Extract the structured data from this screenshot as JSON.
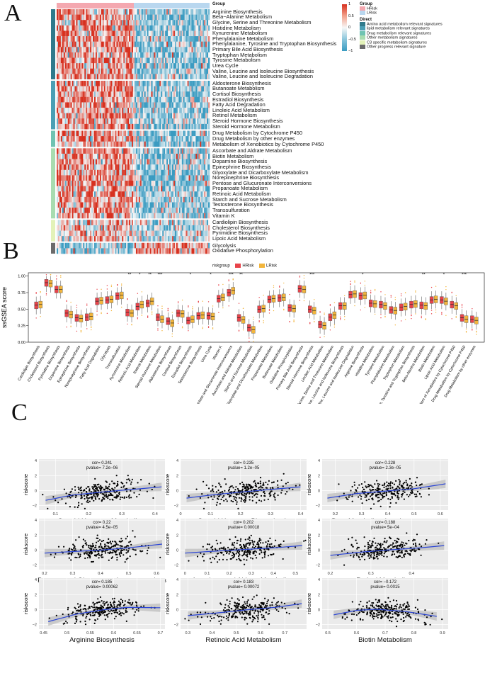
{
  "panels": {
    "a": "A",
    "b": "B",
    "c": "C"
  },
  "heatmap": {
    "group_header": "Group",
    "row_groups": [
      {
        "category": "Amino acid metabolism relevant signatures",
        "color": "#2f7a8c",
        "rows": [
          "Arginine Biosynthesis",
          "Beta−Alanine Metabolism",
          "Glycine, Serine and Threonine Metabolism",
          "Histidine Metabolism",
          "Kynurenine Metabolism",
          "Phenylalanine Metabolism",
          "Phenylalanine, Tyrosine and Tryptophan Biosynthesis",
          "Primary Bile Acid Biosynthesis",
          "Tryptophan Metabolism",
          "Tyrosine Metabolism",
          "Urea Cycle",
          "Valine, Leucine and Isoleucine Biosynthesis",
          "Valine, Leucine and Isoleucine Degradation"
        ]
      },
      {
        "category": "lipid metabolism relevant signatures",
        "color": "#4a9fb5",
        "rows": [
          "Aldosterone Biosynthesis",
          "Butanoate Metabolism",
          "Cortisol Biosynthesis",
          "Estradiol Biosynthesis",
          "Fatty Acid Degradation",
          "Linoleic Acid Metabolism",
          "Retinol Metabolism",
          "Steroid Hormone Biosynthesis",
          "Steroid Hormone Metabolism"
        ]
      },
      {
        "category": "Drug metabolism relevant signatures",
        "color": "#6fc3b2",
        "rows": [
          "Drug Metabolism by Cytochrome P450",
          "Drug Metabolism by other enzymes",
          "Metabolism of Xenobiotics by Cytochrome P450"
        ]
      },
      {
        "category": "Other metabolism signatures",
        "color": "#a8dcb0",
        "rows": [
          "Ascorbate and Aldrate Metabolism",
          "Biotin Metabolism",
          "Dopamine Biosynthesis",
          "Epinephrine Biosynthesis",
          "Glyoxylate and Dicarboxylate Metabolism",
          "Norepinephrine Biosynthesis",
          "Pentose and Glucuronate Interconversions",
          "Propanoate Metabolism",
          "Retinoic Acid Metabolism",
          "Starch and Sucrose Metabolism",
          "Testosterone Biosynthesis",
          "Transsulfuration",
          "Vitamin K"
        ]
      },
      {
        "category": "C3 specific metabolism signatures",
        "color": "#e3f2b8",
        "rows": [
          "Cardiolipin Biosynthesis",
          "Cholesterol Biosynthesis",
          "Pyrimidine Biosynthesis",
          "Lipoic Acid Metabolism"
        ]
      },
      {
        "category": "Other progress relevant signature",
        "color": "#6b6b6b",
        "rows": [
          "Glycolysis",
          "Oxidative Phosphorylation"
        ]
      }
    ],
    "colorbar": {
      "ticks": [
        "1",
        "0.5",
        "0",
        "−0.5",
        "−1"
      ],
      "high": "#d7301f",
      "mid": "#f7f7f7",
      "low": "#3a9bc1"
    },
    "group_legend": {
      "title": "Group",
      "items": [
        {
          "label": "HRisk",
          "color": "#f4a8b0"
        },
        {
          "label": "LRisk",
          "color": "#b9d7ef"
        }
      ]
    },
    "direct_legend": {
      "title": "Direct"
    }
  },
  "boxplot": {
    "legend_title": "riskgroup",
    "groups": [
      {
        "label": "HRisk",
        "color": "#e8434a"
      },
      {
        "label": "LRisk",
        "color": "#f2b53c"
      }
    ],
    "ylabel": "ssGSEA score",
    "yticks": [
      "0.00",
      "0.25",
      "0.50",
      "0.75",
      "1.00"
    ],
    "chart_data": {
      "type": "box",
      "ylim": [
        0,
        1.05
      ],
      "categories": [
        "Cardiolipin Biosynthesis",
        "Cholesterol Biosynthesis",
        "Pyrimidine Biosynthesis",
        "Dopamine Biosynthesis",
        "Epinephrine Biosynthesis",
        "Norepinephrine Biosynthesis",
        "Fatty Acid Degradation",
        "Glycolysis",
        "Transsulfuration",
        "Kynurenine Metabolism",
        "Retinoic Acid Metabolism",
        "Retinol Metabolism",
        "Steroid Hormone Metabolism",
        "Aldosterone Biosynthesis",
        "Cortisol Biosynthesis",
        "Estradiol Biosynthesis",
        "Testosterone Biosynthesis",
        "Urea Cycle",
        "Vitamin K",
        "Pentose and Glucuronate Interconversions",
        "Ascorbate and Aldrate Metabolism",
        "Starch and Sucrose Metabolism",
        "Glyoxylate and Dicarboxylate Metabolism",
        "Propanoate Metabolism",
        "Butanoate Metabolism",
        "Oxidative Phosphorylation",
        "Primary Bile Acid Biosynthesis",
        "Steroid Hormone Biosynthesis",
        "Linoleic Acid Metabolism",
        "Glycine, Serine and Threonine Metabolism",
        "Valine, Leucine and Isoleucine Biosynthesis",
        "Valine, Leucine and Isoleucine Degradation",
        "Arginine Biosynthesis",
        "Histidine Metabolism",
        "Tyrosine Metabolism",
        "Phenylalanine Metabolism",
        "Tryptophan Metabolism",
        "Phenylalanine, Tyrosine and Tryptophan Biosynthesis",
        "Beta-Alanine Metabolism",
        "Biotin Metabolism",
        "Lipoic Acid Metabolism",
        "Metabolism of Xenobiotics by Cytochrome P450",
        "Drug Metabolism by Cytochrome P450",
        "Drug Metabolism by other enzymes"
      ],
      "series": [
        {
          "name": "HRisk",
          "medians": [
            0.56,
            0.9,
            0.8,
            0.44,
            0.37,
            0.38,
            0.62,
            0.64,
            0.7,
            0.45,
            0.54,
            0.59,
            0.38,
            0.32,
            0.44,
            0.33,
            0.4,
            0.4,
            0.66,
            0.75,
            0.37,
            0.22,
            0.5,
            0.65,
            0.67,
            0.52,
            0.81,
            0.5,
            0.27,
            0.38,
            0.55,
            0.72,
            0.7,
            0.59,
            0.57,
            0.49,
            0.53,
            0.57,
            0.56,
            0.64,
            0.64,
            0.57,
            0.37,
            0.35
          ]
        },
        {
          "name": "LRisk",
          "medians": [
            0.57,
            0.89,
            0.8,
            0.42,
            0.36,
            0.39,
            0.63,
            0.65,
            0.71,
            0.44,
            0.57,
            0.62,
            0.35,
            0.29,
            0.43,
            0.35,
            0.41,
            0.39,
            0.68,
            0.78,
            0.34,
            0.19,
            0.51,
            0.66,
            0.68,
            0.51,
            0.8,
            0.48,
            0.25,
            0.41,
            0.55,
            0.73,
            0.71,
            0.58,
            0.55,
            0.48,
            0.54,
            0.58,
            0.55,
            0.65,
            0.62,
            0.55,
            0.35,
            0.33
          ]
        }
      ],
      "significance": [
        "",
        "",
        "",
        "",
        "",
        "",
        "",
        "",
        "",
        "**",
        "*",
        "**",
        "***",
        "",
        "",
        "*",
        "",
        "*",
        "",
        "***",
        "**",
        "",
        "",
        "",
        "",
        "",
        "",
        "***",
        "",
        "",
        "",
        "",
        "*",
        "",
        "",
        "",
        "",
        "",
        "**",
        "",
        "*",
        "",
        "***",
        ""
      ]
    }
  },
  "scatter": {
    "ylabel": "riskscore",
    "yticks": [
      "4",
      "2",
      "0",
      "−2"
    ],
    "line_color": "#2b45d6",
    "chart_data": [
      {
        "type": "scatter",
        "title": "Steroid Hormone Metabolism",
        "cor": "cor= 0.241",
        "pvalue": "pvalue= 7.2e−06",
        "xlim": [
          0.05,
          0.43
        ],
        "ylim": [
          -2.6,
          4.2
        ],
        "xticks": [
          0.1,
          0.2,
          0.3,
          0.4
        ],
        "fit": [
          [
            0.07,
            -1.3
          ],
          [
            0.15,
            -0.6
          ],
          [
            0.25,
            -0.15
          ],
          [
            0.33,
            0.15
          ],
          [
            0.42,
            0.5
          ]
        ]
      },
      {
        "type": "scatter",
        "title": "Steroid Hormone Biosynthesis",
        "cor": "cor= 0.235",
        "pvalue": "pvalue= 1.2e−05",
        "xlim": [
          0.0,
          0.42
        ],
        "ylim": [
          -2.6,
          4.2
        ],
        "xticks": [
          0.0,
          0.1,
          0.2,
          0.3,
          0.4
        ],
        "fit": [
          [
            0.02,
            -1.0
          ],
          [
            0.1,
            -0.6
          ],
          [
            0.2,
            -0.2
          ],
          [
            0.3,
            0.15
          ],
          [
            0.4,
            0.5
          ]
        ]
      },
      {
        "type": "scatter",
        "title": "Drug Metabolism by other enzymes",
        "cor": "cor= 0.228",
        "pvalue": "pvalue= 2.3e−05",
        "xlim": [
          0.15,
          0.63
        ],
        "ylim": [
          -2.6,
          4.2
        ],
        "xticks": [
          0.2,
          0.3,
          0.4,
          0.5,
          0.6
        ],
        "fit": [
          [
            0.17,
            -1.0
          ],
          [
            0.28,
            -0.4
          ],
          [
            0.38,
            -0.1
          ],
          [
            0.5,
            0.25
          ],
          [
            0.62,
            0.9
          ]
        ]
      },
      {
        "type": "scatter",
        "title": "Pentose and Glucuronate Interconversions",
        "cor": "cor= 0.22",
        "pvalue": "pvalue= 4.5e−05",
        "xlim": [
          0.18,
          0.63
        ],
        "ylim": [
          -2.6,
          4.2
        ],
        "xticks": [
          0.2,
          0.3,
          0.4,
          0.5,
          0.6
        ],
        "fit": [
          [
            0.2,
            -0.4
          ],
          [
            0.3,
            -0.2
          ],
          [
            0.4,
            0.0
          ],
          [
            0.5,
            0.3
          ],
          [
            0.62,
            0.8
          ]
        ]
      },
      {
        "type": "scatter",
        "title": "Ascorbate and Aldrate Metabolism",
        "cor": "cor= 0.202",
        "pvalue": "pvalue= 0.00018",
        "xlim": [
          -0.02,
          0.55
        ],
        "ylim": [
          -2.6,
          4.2
        ],
        "xticks": [
          0.0,
          0.1,
          0.2,
          0.3,
          0.4,
          0.5
        ],
        "fit": [
          [
            0.0,
            -0.4
          ],
          [
            0.1,
            -0.2
          ],
          [
            0.25,
            0.05
          ],
          [
            0.4,
            0.3
          ],
          [
            0.53,
            0.6
          ]
        ]
      },
      {
        "type": "scatter",
        "title": "Retinol Metabolism",
        "cor": "cor= 0.188",
        "pvalue": "pvalue= 5e−04",
        "xlim": [
          0.18,
          0.49
        ],
        "ylim": [
          -2.6,
          4.2
        ],
        "xticks": [
          0.2,
          0.3,
          0.4
        ],
        "fit": [
          [
            0.2,
            -0.7
          ],
          [
            0.28,
            -0.25
          ],
          [
            0.35,
            0.05
          ],
          [
            0.42,
            0.3
          ],
          [
            0.48,
            0.6
          ]
        ]
      },
      {
        "type": "scatter",
        "title": "Arginine Biosynthesis",
        "cor": "cor= 0.185",
        "pvalue": "pvalue= 0.00062",
        "xlim": [
          0.44,
          0.71
        ],
        "ylim": [
          -2.6,
          4.2
        ],
        "xticks": [
          0.45,
          0.5,
          0.55,
          0.6,
          0.65,
          0.7
        ],
        "fit": [
          [
            0.46,
            -1.6
          ],
          [
            0.52,
            -0.6
          ],
          [
            0.58,
            0.0
          ],
          [
            0.63,
            0.3
          ],
          [
            0.7,
            0.25
          ]
        ]
      },
      {
        "type": "scatter",
        "title": "Retinoic Acid Metabolism",
        "cor": "cor= 0.183",
        "pvalue": "pvalue= 0.00072",
        "xlim": [
          0.27,
          0.79
        ],
        "ylim": [
          -2.6,
          4.2
        ],
        "xticks": [
          0.3,
          0.4,
          0.5,
          0.6,
          0.7
        ],
        "fit": [
          [
            0.3,
            -0.8
          ],
          [
            0.42,
            -0.45
          ],
          [
            0.55,
            0.0
          ],
          [
            0.66,
            0.3
          ],
          [
            0.77,
            0.8
          ]
        ]
      },
      {
        "type": "scatter",
        "title": "Biotin Metabolism",
        "cor": "cor= −0.172",
        "pvalue": "pvalue= 0.0015",
        "xlim": [
          0.48,
          0.92
        ],
        "ylim": [
          -2.6,
          4.2
        ],
        "xticks": [
          0.5,
          0.6,
          0.7,
          0.8,
          0.9
        ],
        "fit": [
          [
            0.52,
            -0.7
          ],
          [
            0.6,
            -0.1
          ],
          [
            0.67,
            0.05
          ],
          [
            0.77,
            -0.25
          ],
          [
            0.88,
            -0.9
          ]
        ]
      }
    ]
  }
}
